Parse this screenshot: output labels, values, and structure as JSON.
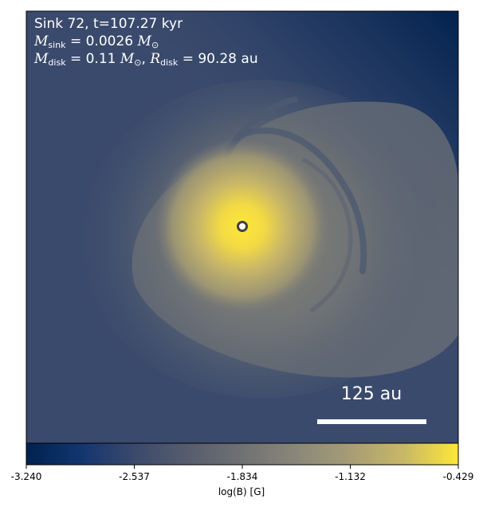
{
  "annotation": {
    "title": "Sink 72, t=107.27 kyr",
    "sink_mass": {
      "symbol": "M",
      "subscript": "sink",
      "value": "= 0.0026",
      "unit_symbol": "M",
      "unit_subscript": "⊙"
    },
    "disk": {
      "mass_symbol": "M",
      "mass_subscript": "disk",
      "mass_value": "= 0.11",
      "mass_unit_symbol": "M",
      "mass_unit_subscript": "⊙",
      "separator": ",",
      "radius_symbol": "R",
      "radius_subscript": "disk",
      "radius_value": "= 90.28 au"
    }
  },
  "scalebar": {
    "label": "125 au"
  },
  "colorbar": {
    "label": "log(B) [G]",
    "colormap": "cividis",
    "ticks": [
      "-3.240",
      "-2.537",
      "-1.834",
      "-1.132",
      "-0.429"
    ],
    "colors": {
      "low": "#00224e",
      "mid": "#7c7b78",
      "high": "#fee838"
    }
  },
  "sink_marker": {
    "fill": "#ffffff",
    "stroke": "#404040"
  }
}
